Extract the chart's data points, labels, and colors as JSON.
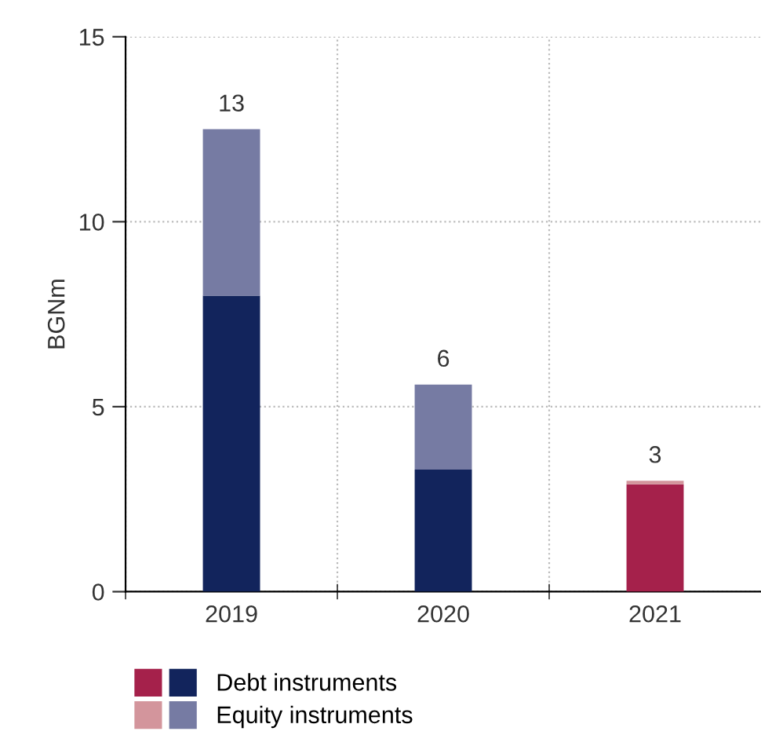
{
  "chart_data": {
    "type": "bar",
    "stacked": true,
    "ylabel": "BGNm",
    "categories": [
      "2019",
      "2020",
      "2021"
    ],
    "series": [
      {
        "name": "Debt instruments",
        "colors": [
          "#12245c",
          "#12245c",
          "#a5214b"
        ],
        "values": [
          8.0,
          3.3,
          2.9
        ]
      },
      {
        "name": "Equity instruments",
        "colors": [
          "#767ba3",
          "#767ba3",
          "#d3959c"
        ],
        "values": [
          4.5,
          2.3,
          0.1
        ]
      }
    ],
    "totals": [
      "13",
      "6",
      "3"
    ],
    "ylim": [
      0,
      15
    ],
    "yticks": [
      0,
      5,
      10,
      15
    ],
    "grid": true,
    "legend": "bottom"
  }
}
